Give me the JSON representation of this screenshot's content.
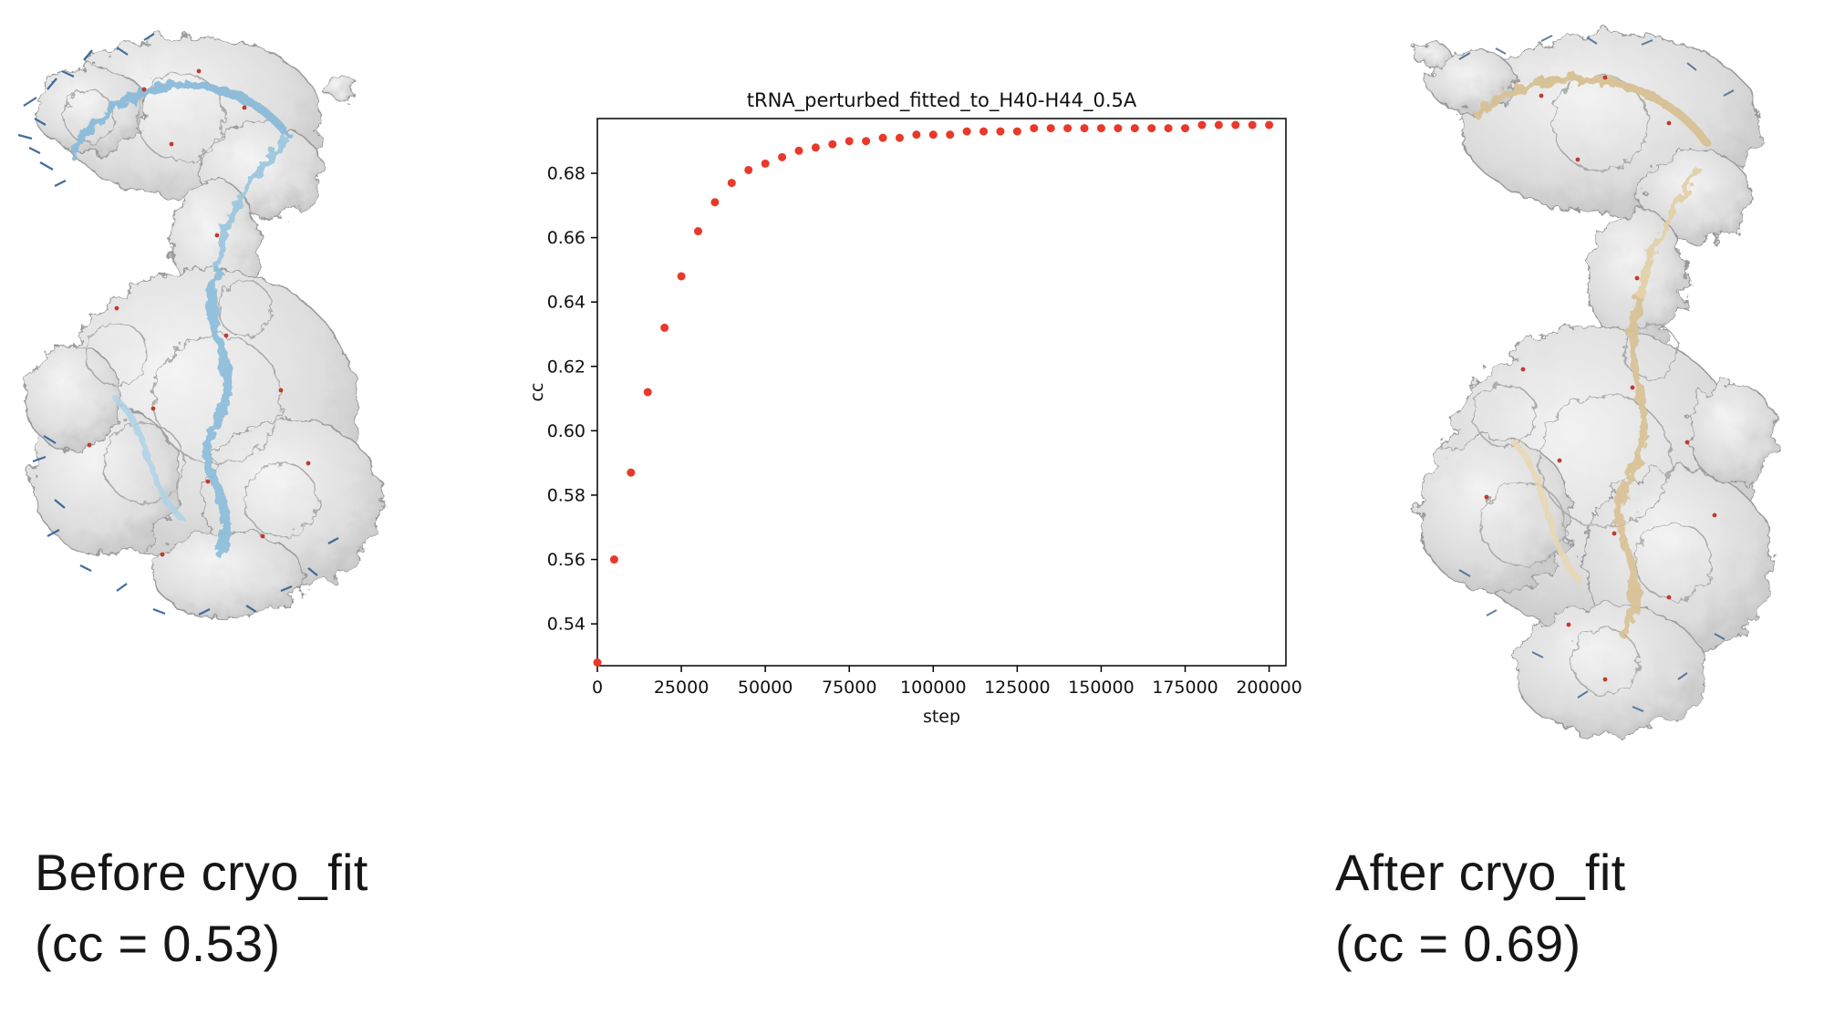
{
  "figure": {
    "before": {
      "caption_line1": "Before cryo_fit",
      "caption_line2": "(cc = 0.53)",
      "cc": 0.53,
      "ribbon_color": "#8abbd8"
    },
    "after": {
      "caption_line1": "After cryo_fit",
      "caption_line2": "(cc = 0.69)",
      "cc": 0.69,
      "ribbon_color": "#d7c093"
    }
  },
  "chart_data": {
    "type": "scatter",
    "title": "tRNA_perturbed_fitted_to_H40-H44_0.5A",
    "xlabel": "step",
    "ylabel": "cc",
    "marker_color": "#e8392a",
    "grid": false,
    "legend": "none",
    "xlim": [
      0,
      205000
    ],
    "ylim": [
      0.527,
      0.697
    ],
    "x_ticks": [
      0,
      25000,
      50000,
      75000,
      100000,
      125000,
      150000,
      175000,
      200000
    ],
    "y_ticks": [
      0.54,
      0.56,
      0.58,
      0.6,
      0.62,
      0.64,
      0.66,
      0.68
    ],
    "x": [
      0,
      5000,
      10000,
      15000,
      20000,
      25000,
      30000,
      35000,
      40000,
      45000,
      50000,
      55000,
      60000,
      65000,
      70000,
      75000,
      80000,
      85000,
      90000,
      95000,
      100000,
      105000,
      110000,
      115000,
      120000,
      125000,
      130000,
      135000,
      140000,
      145000,
      150000,
      155000,
      160000,
      165000,
      170000,
      175000,
      180000,
      185000,
      190000,
      195000,
      200000
    ],
    "y": [
      0.528,
      0.56,
      0.587,
      0.612,
      0.632,
      0.648,
      0.662,
      0.671,
      0.677,
      0.681,
      0.683,
      0.685,
      0.687,
      0.688,
      0.689,
      0.69,
      0.69,
      0.691,
      0.691,
      0.692,
      0.692,
      0.692,
      0.693,
      0.693,
      0.693,
      0.693,
      0.694,
      0.694,
      0.694,
      0.694,
      0.694,
      0.694,
      0.694,
      0.694,
      0.694,
      0.694,
      0.695,
      0.695,
      0.695,
      0.695,
      0.695
    ]
  }
}
